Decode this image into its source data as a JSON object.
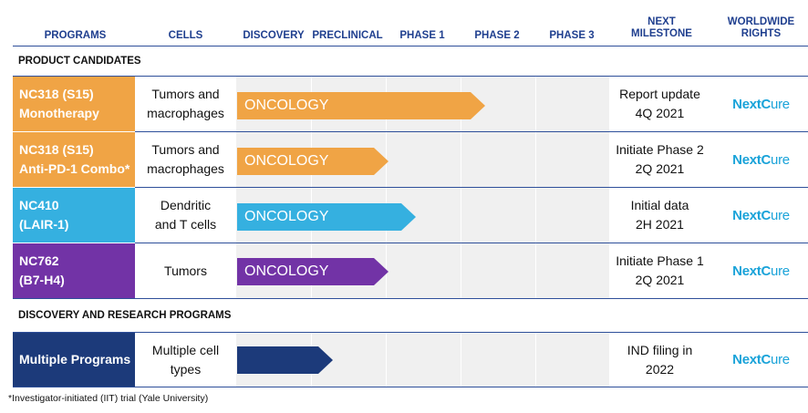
{
  "headers": {
    "programs": "PROGRAMS",
    "cells": "CELLS",
    "discovery": "DISCOVERY",
    "preclinical": "PRECLINICAL",
    "phase1": "PHASE 1",
    "phase2": "PHASE 2",
    "phase3": "PHASE 3",
    "next_milestone_1": "NEXT",
    "next_milestone_2": "MILESTONE",
    "rights_1": "WORLDWIDE",
    "rights_2": "RIGHTS"
  },
  "sections": {
    "product_candidates": "PRODUCT CANDIDATES",
    "discovery_research": "DISCOVERY AND RESEARCH PROGRAMS"
  },
  "rows": [
    {
      "program_1": "NC318 (S15)",
      "program_2": "Monotherapy",
      "cells_1": "Tumors and",
      "cells_2": "macrophages",
      "bar_label": "ONCOLOGY",
      "milestone_1": "Report update",
      "milestone_2": "4Q 2021",
      "color": "#f0a445"
    },
    {
      "program_1": "NC318 (S15)",
      "program_2": "Anti-PD-1 Combo*",
      "cells_1": "Tumors and",
      "cells_2": "macrophages",
      "bar_label": "ONCOLOGY",
      "milestone_1": "Initiate Phase 2",
      "milestone_2": "2Q 2021",
      "color": "#f0a445"
    },
    {
      "program_1": "NC410",
      "program_2": "(LAIR-1)",
      "cells_1": "Dendritic",
      "cells_2": "and T cells",
      "bar_label": "ONCOLOGY",
      "milestone_1": "Initial data",
      "milestone_2": "2H 2021",
      "color": "#35b0e0"
    },
    {
      "program_1": "NC762",
      "program_2": "(B7-H4)",
      "cells_1": "Tumors",
      "cells_2": "",
      "bar_label": "ONCOLOGY",
      "milestone_1": "Initiate Phase 1",
      "milestone_2": "2Q 2021",
      "color": "#7233a6"
    },
    {
      "program_1": "Multiple Programs",
      "program_2": "",
      "cells_1": "Multiple cell",
      "cells_2": "types",
      "bar_label": "",
      "milestone_1": "IND filing in",
      "milestone_2": "2022",
      "color": "#1c3a7a"
    }
  ],
  "logo": {
    "part1": "Next",
    "part2": "C",
    "part3": "ure"
  },
  "footnote": "*Investigator-initiated (IIT) trial (Yale University)"
}
